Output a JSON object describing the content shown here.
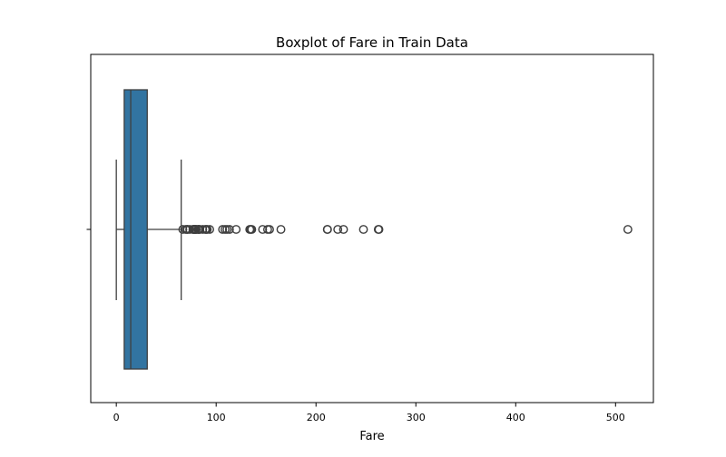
{
  "chart_data": {
    "type": "boxplot",
    "title": "Boxplot of Fare in Train Data",
    "xlabel": "Fare",
    "ylabel": "",
    "orientation": "horizontal",
    "xlim": [
      -25.6,
      537.9
    ],
    "x_ticks": [
      0,
      100,
      200,
      300,
      400,
      500
    ],
    "x_tick_labels": [
      "0",
      "100",
      "200",
      "300",
      "400",
      "500"
    ],
    "grid": false,
    "legend": "none",
    "box_color": "#3274a1",
    "line_color": "#3f3f3f",
    "series": {
      "whisker_low": 0,
      "q1": 7.9,
      "median": 14.45,
      "q3": 31,
      "whisker_high": 65,
      "outliers": [
        66.6,
        69.55,
        71,
        71.28,
        73.5,
        76.73,
        77.29,
        77.96,
        78.27,
        78.85,
        79.2,
        79.65,
        80,
        81.86,
        82.17,
        83.16,
        83.48,
        86.5,
        89.1,
        90,
        91.08,
        93.5,
        106.43,
        108.9,
        110.88,
        113.28,
        120,
        133.65,
        134.5,
        135.63,
        146.52,
        151.55,
        153.46,
        164.87,
        211.34,
        211.5,
        221.78,
        227.53,
        247.52,
        262.38,
        263,
        512.33
      ]
    }
  }
}
